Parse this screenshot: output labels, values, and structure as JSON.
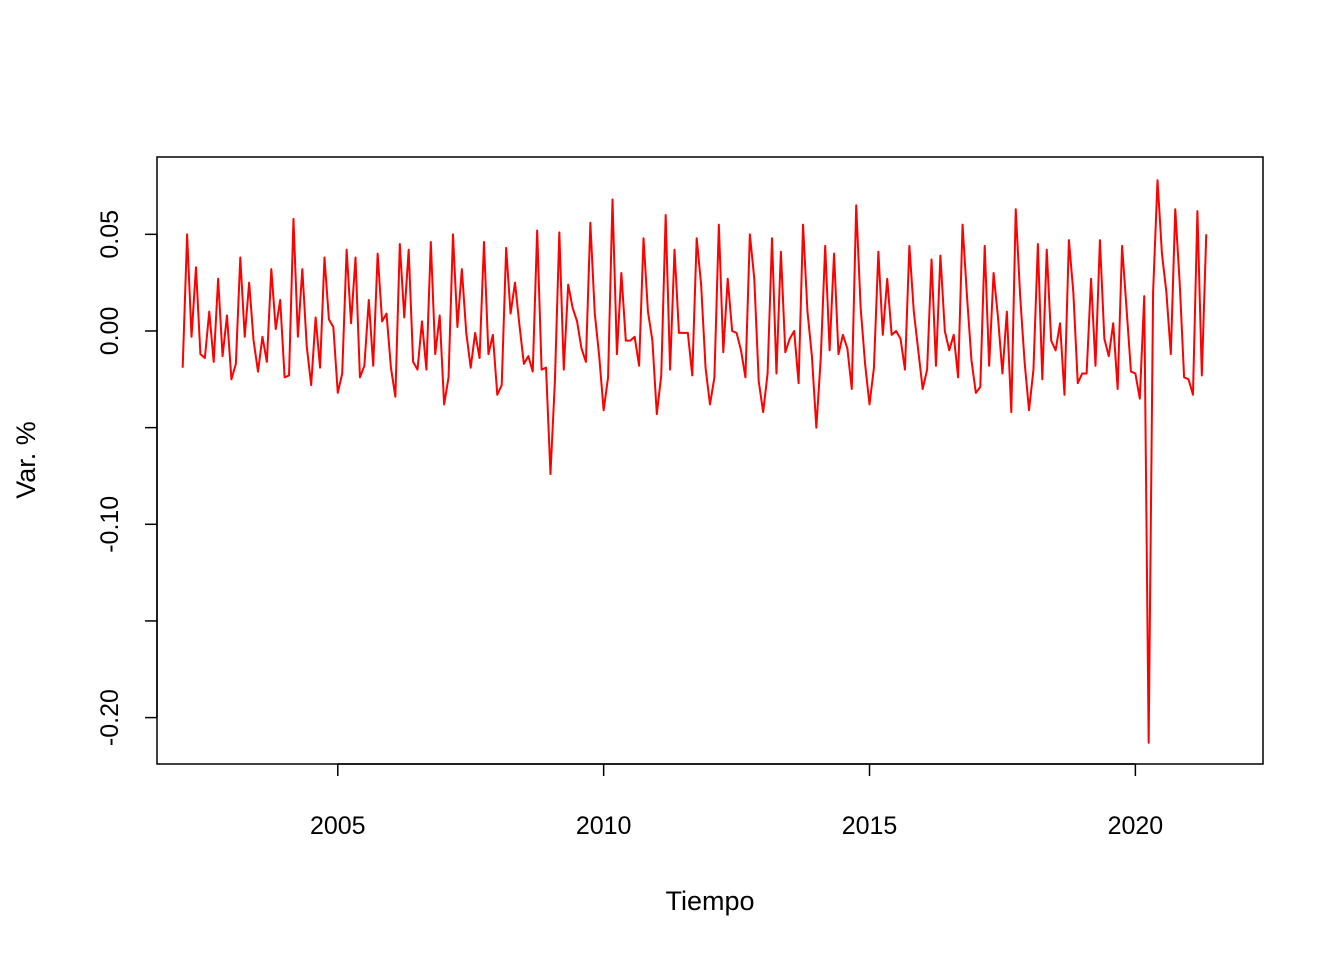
{
  "chart_data": {
    "type": "line",
    "title": "",
    "xlabel": "Tiempo",
    "ylabel": "Var. %",
    "xlim": [
      2001.6,
      2022.4
    ],
    "ylim": [
      -0.224,
      0.09
    ],
    "x_ticks": [
      2005,
      2010,
      2015,
      2020
    ],
    "x_tick_labels": [
      "2005",
      "2010",
      "2015",
      "2020"
    ],
    "y_ticks": [
      -0.2,
      -0.15,
      -0.1,
      -0.05,
      0.0,
      0.05
    ],
    "y_tick_labels": [
      "-0.20",
      "",
      "-0.10",
      "",
      "0.00",
      "0.05"
    ],
    "grid": false,
    "legend": "none",
    "series": [
      {
        "color": "#ff0000",
        "x_start": 2002.083,
        "x_step": 0.0833333,
        "values": [
          -0.019,
          0.05,
          -0.003,
          0.033,
          -0.012,
          -0.014,
          0.01,
          -0.016,
          0.027,
          -0.013,
          0.008,
          -0.025,
          -0.017,
          0.038,
          -0.003,
          0.025,
          -0.005,
          -0.021,
          -0.003,
          -0.016,
          0.032,
          0.001,
          0.016,
          -0.024,
          -0.023,
          0.058,
          -0.003,
          0.032,
          -0.008,
          -0.028,
          0.007,
          -0.019,
          0.038,
          0.006,
          0.002,
          -0.032,
          -0.022,
          0.042,
          0.004,
          0.038,
          -0.024,
          -0.018,
          0.016,
          -0.018,
          0.04,
          0.005,
          0.009,
          -0.019,
          -0.034,
          0.045,
          0.007,
          0.042,
          -0.016,
          -0.02,
          0.005,
          -0.02,
          0.046,
          -0.012,
          0.008,
          -0.038,
          -0.024,
          0.05,
          0.002,
          0.032,
          -0.001,
          -0.019,
          -0.001,
          -0.014,
          0.046,
          -0.012,
          -0.002,
          -0.033,
          -0.028,
          0.043,
          0.009,
          0.025,
          0.003,
          -0.017,
          -0.013,
          -0.021,
          0.052,
          -0.02,
          -0.019,
          -0.074,
          -0.026,
          0.051,
          -0.02,
          0.024,
          0.012,
          0.005,
          -0.009,
          -0.016,
          0.056,
          0.009,
          -0.013,
          -0.041,
          -0.024,
          0.068,
          -0.012,
          0.03,
          -0.005,
          -0.005,
          -0.003,
          -0.018,
          0.048,
          0.01,
          -0.005,
          -0.043,
          -0.023,
          0.06,
          -0.02,
          0.042,
          -0.001,
          -0.001,
          -0.001,
          -0.023,
          0.048,
          0.024,
          -0.019,
          -0.038,
          -0.024,
          0.055,
          -0.011,
          0.027,
          0.0,
          -0.001,
          -0.01,
          -0.024,
          0.05,
          0.027,
          -0.026,
          -0.042,
          -0.022,
          0.048,
          -0.022,
          0.041,
          -0.011,
          -0.004,
          0.0,
          -0.027,
          0.055,
          0.01,
          -0.013,
          -0.05,
          -0.014,
          0.044,
          -0.01,
          0.04,
          -0.012,
          -0.002,
          -0.009,
          -0.03,
          0.065,
          0.012,
          -0.017,
          -0.038,
          -0.019,
          0.041,
          -0.002,
          0.027,
          -0.002,
          0.0,
          -0.004,
          -0.02,
          0.044,
          0.01,
          -0.01,
          -0.03,
          -0.02,
          0.037,
          -0.018,
          0.039,
          0.0,
          -0.01,
          -0.002,
          -0.024,
          0.055,
          0.018,
          -0.015,
          -0.032,
          -0.029,
          0.044,
          -0.018,
          0.03,
          0.007,
          -0.022,
          0.01,
          -0.042,
          0.063,
          0.018,
          -0.016,
          -0.041,
          -0.02,
          0.045,
          -0.025,
          0.042,
          -0.005,
          -0.01,
          0.004,
          -0.033,
          0.047,
          0.02,
          -0.027,
          -0.022,
          -0.022,
          0.027,
          -0.018,
          0.047,
          -0.004,
          -0.013,
          0.004,
          -0.03,
          0.044,
          0.012,
          -0.021,
          -0.022,
          -0.035,
          0.018,
          -0.213,
          0.02,
          0.078,
          0.04,
          0.02,
          -0.012,
          0.063,
          0.025,
          -0.024,
          -0.025,
          -0.033,
          0.062,
          -0.023,
          0.05
        ]
      }
    ]
  }
}
